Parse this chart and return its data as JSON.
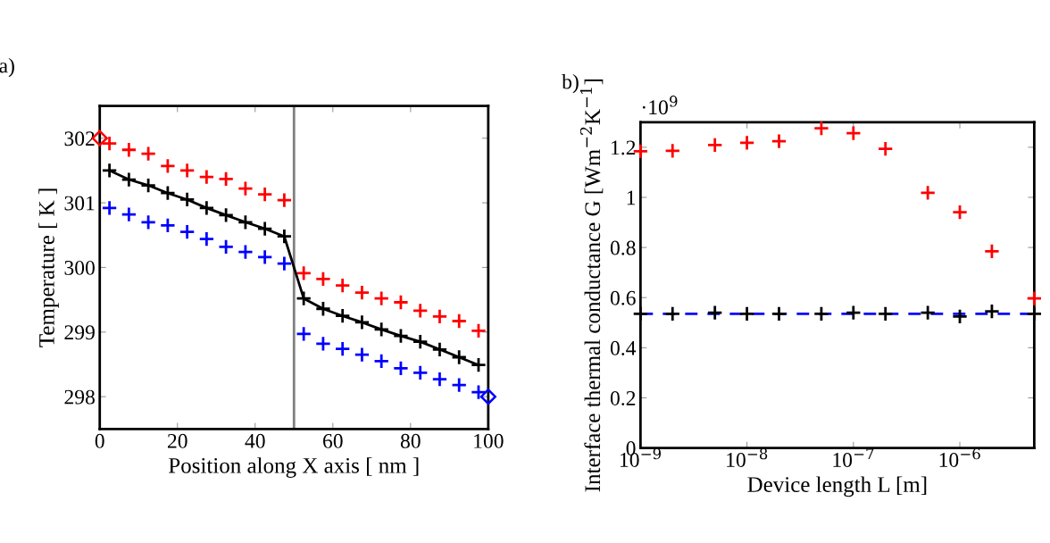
{
  "chart_data": [
    {
      "type": "scatter",
      "title": "a)",
      "xlabel": "Position along X axis [ nm ]",
      "ylabel": "Temperature [ K ]",
      "xlim": [
        0,
        100
      ],
      "ylim": [
        297.5,
        302.5
      ],
      "xticks": [
        0,
        20,
        40,
        60,
        80,
        100
      ],
      "yticks": [
        298,
        299,
        300,
        301,
        302
      ],
      "grid": false,
      "legend": false,
      "ref_lines": [
        {
          "axis": "x",
          "value": 50,
          "color": "#808080",
          "line_style": "solid"
        }
      ],
      "series": [
        {
          "marker": "cross",
          "color": "#ff0000",
          "x": [
            2.5,
            7.5,
            12.5,
            17.5,
            22.5,
            27.5,
            32.5,
            37.5,
            42.5,
            47.5,
            52.5,
            57.5,
            62.5,
            67.5,
            72.5,
            77.5,
            82.5,
            87.5,
            92.5,
            97.5
          ],
          "values": [
            301.92,
            301.82,
            301.76,
            301.57,
            301.5,
            301.4,
            301.37,
            301.22,
            301.13,
            301.04,
            299.91,
            299.82,
            299.72,
            299.61,
            299.52,
            299.46,
            299.33,
            299.24,
            299.17,
            299.02
          ]
        },
        {
          "type": "line",
          "marker": "cross",
          "line_style": "solid",
          "color": "#000000",
          "x": [
            2.5,
            7.5,
            12.5,
            17.5,
            22.5,
            27.5,
            32.5,
            37.5,
            42.5,
            47.5,
            52.5,
            57.5,
            62.5,
            67.5,
            72.5,
            77.5,
            82.5,
            87.5,
            92.5,
            97.5
          ],
          "values": [
            301.5,
            301.36,
            301.27,
            301.15,
            301.05,
            300.92,
            300.81,
            300.7,
            300.6,
            300.48,
            299.52,
            299.36,
            299.25,
            299.15,
            299.04,
            298.94,
            298.85,
            298.73,
            298.61,
            298.49
          ]
        },
        {
          "marker": "cross",
          "color": "#0000ff",
          "x": [
            2.5,
            7.5,
            12.5,
            17.5,
            22.5,
            27.5,
            32.5,
            37.5,
            42.5,
            47.5,
            52.5,
            57.5,
            62.5,
            67.5,
            72.5,
            77.5,
            82.5,
            87.5,
            92.5,
            97.5
          ],
          "values": [
            300.92,
            300.82,
            300.7,
            300.65,
            300.55,
            300.44,
            300.32,
            300.24,
            300.16,
            300.06,
            298.97,
            298.82,
            298.74,
            298.65,
            298.55,
            298.44,
            298.37,
            298.27,
            298.18,
            298.07
          ]
        },
        {
          "marker": "diamond",
          "color": "#ff0000",
          "x": [
            0
          ],
          "values": [
            302
          ]
        },
        {
          "marker": "diamond",
          "color": "#0000ff",
          "x": [
            100
          ],
          "values": [
            298
          ]
        }
      ]
    },
    {
      "type": "scatter",
      "title": "b)",
      "xlabel": "Device length L [m]",
      "ylabel": "Interface thermal conductance G [Wm$^{−2}$K$^{−1}$]",
      "log": "x",
      "xlim": [
        1e-09,
        5e-06
      ],
      "ylim": [
        0,
        1.3
      ],
      "xticks": [
        {
          "value": 1e-09,
          "label": "10$^{−9}$"
        },
        {
          "value": 1e-08,
          "label": "10$^{−8}$"
        },
        {
          "value": 1e-07,
          "label": "10$^{−7}$"
        },
        {
          "value": 1e-06,
          "label": "10$^{−6}$"
        }
      ],
      "yticks": [
        0,
        0.2,
        0.4,
        0.6,
        0.8,
        1,
        1.2
      ],
      "grid": false,
      "legend": false,
      "annotations": [
        "·10$^{9}$"
      ],
      "ref_lines": [
        {
          "axis": "y",
          "value": 0.535,
          "color": "#0000ff",
          "line_style": "dashed"
        }
      ],
      "series": [
        {
          "marker": "cross",
          "color": "#ff0000",
          "x": [
            1e-09,
            2e-09,
            5e-09,
            1e-08,
            2e-08,
            5e-08,
            1e-07,
            2e-07,
            5e-07,
            1e-06,
            2e-06,
            5e-06
          ],
          "values": [
            1.184,
            1.186,
            1.209,
            1.218,
            1.224,
            1.276,
            1.256,
            1.194,
            1.018,
            0.941,
            0.785,
            0.597
          ]
        },
        {
          "marker": "cross",
          "color": "#000000",
          "x": [
            1e-09,
            2e-09,
            5e-09,
            1e-08,
            2e-08,
            5e-08,
            1e-07,
            2e-07,
            5e-07,
            1e-06,
            2e-06,
            5e-06
          ],
          "values": [
            0.535,
            0.535,
            0.54,
            0.535,
            0.535,
            0.535,
            0.54,
            0.535,
            0.54,
            0.525,
            0.545,
            0.535
          ]
        }
      ]
    }
  ]
}
